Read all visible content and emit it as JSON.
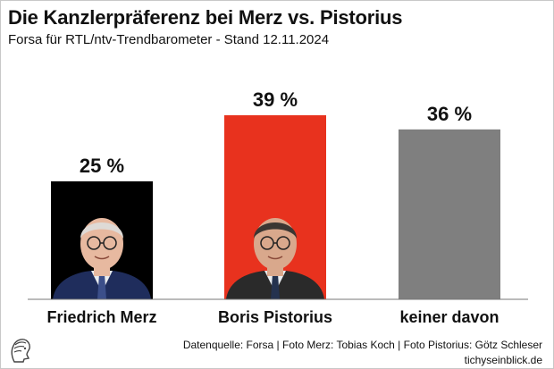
{
  "header": {
    "title": "Die Kanzlerpräferenz bei Merz vs. Pistorius",
    "subtitle": "Forsa für RTL/ntv-Trendbarometer - Stand 12.11.2024"
  },
  "chart_data": {
    "type": "bar",
    "title": "Die Kanzlerpräferenz bei Merz vs. Pistorius",
    "subtitle": "Forsa für RTL/ntv-Trendbarometer - Stand 12.11.2024",
    "categories": [
      "Friedrich Merz",
      "Boris Pistorius",
      "keiner davon"
    ],
    "values": [
      25,
      39,
      36
    ],
    "value_labels": [
      "25 %",
      "39 %",
      "36 %"
    ],
    "colors": [
      "#000000",
      "#e8321e",
      "#7f7f7f"
    ],
    "unit": "%",
    "ylim": [
      0,
      39
    ],
    "grid": false,
    "legend": "none",
    "bar_images": [
      "portrait-friedrich-merz",
      "portrait-boris-pistorius",
      ""
    ]
  },
  "footer": {
    "source": "Datenquelle: Forsa | Foto Merz: Tobias Koch | Foto Pistorius: Götz Schleser",
    "site": "tichyseinblick.de",
    "logo_icon": "publisher-logo-icon"
  }
}
